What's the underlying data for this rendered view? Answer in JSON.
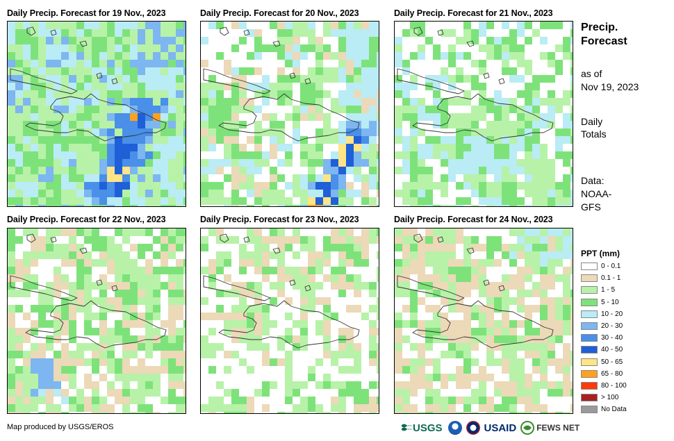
{
  "panels": [
    {
      "title": "Daily Precip. Forecast for 19 Nov., 2023"
    },
    {
      "title": "Daily Precip. Forecast for 20 Nov., 2023"
    },
    {
      "title": "Daily Precip. Forecast for 21 Nov., 2023"
    },
    {
      "title": "Daily Precip. Forecast for 22 Nov., 2023"
    },
    {
      "title": "Daily Precip. Forecast for 23 Nov., 2023"
    },
    {
      "title": "Daily Precip. Forecast for 24 Nov., 2023"
    }
  ],
  "sidebar": {
    "title": "Precip. Forecast",
    "asof_label": "as of",
    "asof_date": "Nov 19, 2023",
    "totals_line1": "Daily",
    "totals_line2": "Totals",
    "data_line1": "Data:",
    "data_line2": "NOAA-",
    "data_line3": "GFS"
  },
  "legend": {
    "title": "PPT (mm)",
    "items": [
      {
        "label": "0 - 0.1",
        "color": "#ffffff"
      },
      {
        "label": "0.1 - 1",
        "color": "#ecd9b8"
      },
      {
        "label": "1 - 5",
        "color": "#b7f2a8"
      },
      {
        "label": "5 - 10",
        "color": "#7ee27a"
      },
      {
        "label": "10 - 20",
        "color": "#b9ecf4"
      },
      {
        "label": "20 - 30",
        "color": "#7db6f0"
      },
      {
        "label": "30 - 40",
        "color": "#4a8fe8"
      },
      {
        "label": "40 - 50",
        "color": "#1f5fd8"
      },
      {
        "label": "50 - 65",
        "color": "#ffe585"
      },
      {
        "label": "65 - 80",
        "color": "#ffa11c"
      },
      {
        "label": "80 - 100",
        "color": "#ff3a0a"
      },
      {
        "label": "> 100",
        "color": "#a82020"
      },
      {
        "label": "No Data",
        "color": "#9a9a9a"
      }
    ]
  },
  "footer": {
    "credit": "Map produced by USGS/EROS",
    "logo_usgs": "USGS",
    "logo_usaid": "USAID",
    "logo_fews": "FEWS NET"
  }
}
